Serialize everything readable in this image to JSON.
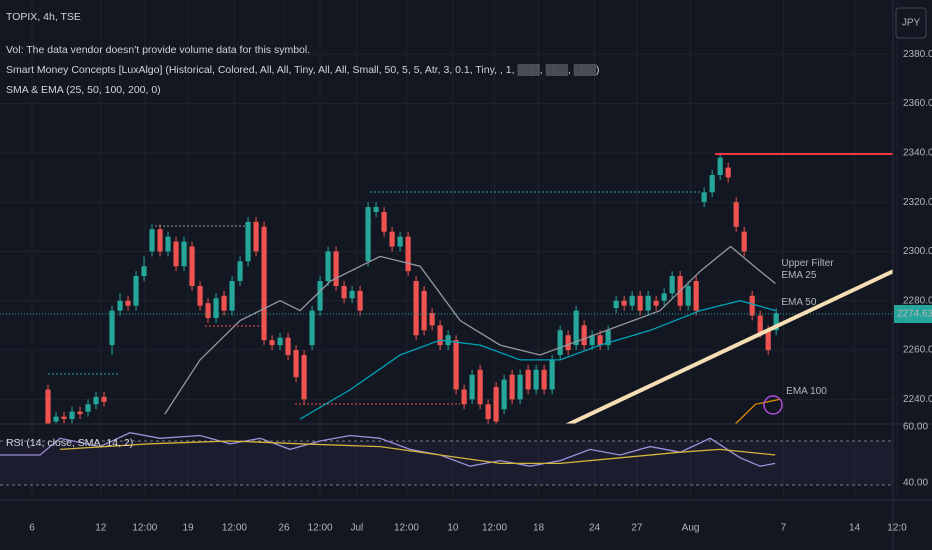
{
  "chart_data": {
    "type": "candlestick",
    "title": "TOPIX, 4h, TSE",
    "indicators": [
      "Vol: The data vendor doesn't provide volume data for this symbol.",
      "Smart Money Concepts [LuxAlgo] (Historical, Colored, All, All, Tiny, All, All, Small, 50, 5, 5, Atr, 3, 0.1, Tiny, , 1, ▒▒▒, ▒▒▒, ▒▒▒)",
      "SMA & EMA (25, 50, 100, 200, 0)"
    ],
    "currency": "JPY",
    "up_color": "#26a69a",
    "down_color": "#ef5350",
    "grid": true,
    "xlim": [
      -4,
      107.6
    ],
    "xticks": [
      {
        "value": 0,
        "label": "6"
      },
      {
        "value": 8.6,
        "label": "12"
      },
      {
        "value": 14.1,
        "label": "12:00"
      },
      {
        "value": 19.5,
        "label": "19"
      },
      {
        "value": 25.3,
        "label": "12:00"
      },
      {
        "value": 31.5,
        "label": "26"
      },
      {
        "value": 36,
        "label": "12:00"
      },
      {
        "value": 40.6,
        "label": "Jul"
      },
      {
        "value": 46.8,
        "label": "12:00"
      },
      {
        "value": 52.6,
        "label": "10"
      },
      {
        "value": 57.8,
        "label": "12:00"
      },
      {
        "value": 63.3,
        "label": "18"
      },
      {
        "value": 70.3,
        "label": "24"
      },
      {
        "value": 75.6,
        "label": "27"
      },
      {
        "value": 82.3,
        "label": "Aug"
      },
      {
        "value": 93.9,
        "label": "7"
      },
      {
        "value": 102.8,
        "label": "14"
      },
      {
        "value": 108.1,
        "label": "12:0"
      }
    ],
    "ylim": [
      2230,
      2402
    ],
    "yticks": [
      {
        "value": 2240,
        "label": "2240.00"
      },
      {
        "value": 2260,
        "label": "2260.00"
      },
      {
        "value": 2280,
        "label": "2280.00"
      },
      {
        "value": 2300,
        "label": "2300.00"
      },
      {
        "value": 2320,
        "label": "2320.00"
      },
      {
        "value": 2340,
        "label": "2340.00"
      },
      {
        "value": 2360,
        "label": "2360.00"
      },
      {
        "value": 2380,
        "label": "2380.00"
      }
    ],
    "last_price": 2274.63,
    "x": [
      2,
      3,
      4,
      5,
      6,
      7,
      8,
      9,
      10,
      11,
      12,
      13,
      14,
      15,
      16,
      17,
      18,
      19,
      20,
      21,
      22,
      23,
      24,
      25,
      26,
      27,
      28,
      29,
      30,
      31,
      32,
      33,
      34,
      35,
      36,
      37,
      38,
      39,
      40,
      41,
      42,
      43,
      44,
      45,
      46,
      47,
      48,
      49,
      50,
      51,
      52,
      53,
      54,
      55,
      56,
      57,
      58,
      59,
      60,
      61,
      62,
      63,
      64,
      65,
      66,
      67,
      68,
      69,
      70,
      71,
      72,
      73,
      74,
      75,
      76,
      77,
      78,
      79,
      80,
      81,
      82,
      83,
      84,
      85,
      86,
      87,
      88,
      89,
      90,
      91,
      92,
      93
    ],
    "open": [
      2244,
      2231,
      2233,
      2232,
      2235,
      2235,
      2238,
      2241,
      2262,
      2276,
      2280,
      2278,
      2290,
      2300,
      2309,
      2300,
      2304,
      2294,
      2302,
      2286,
      2279,
      2273,
      2282,
      2276,
      2288,
      2296,
      2312,
      2310,
      2264,
      2262,
      2265,
      2260,
      2258,
      2262,
      2276,
      2288,
      2300,
      2286,
      2281,
      2284,
      2296,
      2316,
      2316,
      2308,
      2302,
      2306,
      2288,
      2284,
      2275,
      2270,
      2262,
      2264,
      2244,
      2240,
      2252,
      2238,
      2245,
      2236,
      2250,
      2240,
      2252,
      2244,
      2252,
      2244,
      2258,
      2266,
      2262,
      2270,
      2262,
      2266,
      2262,
      2277,
      2280,
      2278,
      2282,
      2276,
      2280,
      2280,
      2283,
      2290,
      2278,
      2288,
      2320,
      2324,
      2331,
      2334,
      2320,
      2308,
      2282,
      2274,
      2268,
      2268
    ],
    "high": [
      2246,
      2235,
      2235,
      2237,
      2237,
      2240,
      2243,
      2243,
      2278,
      2283,
      2282,
      2292,
      2298,
      2311,
      2311,
      2308,
      2306,
      2306,
      2304,
      2288,
      2281,
      2283,
      2284,
      2290,
      2298,
      2314,
      2314,
      2312,
      2266,
      2267,
      2267,
      2262,
      2260,
      2278,
      2290,
      2302,
      2302,
      2288,
      2286,
      2286,
      2320,
      2320,
      2318,
      2310,
      2308,
      2308,
      2290,
      2286,
      2277,
      2272,
      2268,
      2266,
      2246,
      2252,
      2254,
      2240,
      2247,
      2250,
      2252,
      2252,
      2254,
      2254,
      2254,
      2258,
      2270,
      2268,
      2278,
      2272,
      2268,
      2268,
      2270,
      2282,
      2282,
      2284,
      2284,
      2284,
      2282,
      2285,
      2292,
      2292,
      2288,
      2290,
      2326,
      2333,
      2340,
      2336,
      2322,
      2310,
      2284,
      2276,
      2270,
      2277
    ],
    "low": [
      2228,
      2229,
      2230,
      2230,
      2232,
      2233,
      2236,
      2237,
      2258,
      2274,
      2276,
      2276,
      2288,
      2298,
      2298,
      2298,
      2292,
      2292,
      2284,
      2276,
      2271,
      2271,
      2274,
      2274,
      2286,
      2294,
      2298,
      2262,
      2260,
      2260,
      2256,
      2247,
      2238,
      2260,
      2274,
      2286,
      2284,
      2279,
      2279,
      2274,
      2294,
      2314,
      2306,
      2300,
      2300,
      2290,
      2264,
      2266,
      2268,
      2260,
      2260,
      2242,
      2236,
      2238,
      2236,
      2230,
      2229,
      2234,
      2238,
      2238,
      2242,
      2242,
      2242,
      2242,
      2256,
      2258,
      2260,
      2260,
      2260,
      2260,
      2260,
      2275,
      2276,
      2276,
      2274,
      2274,
      2276,
      2278,
      2281,
      2276,
      2276,
      2274,
      2318,
      2322,
      2329,
      2328,
      2308,
      2298,
      2272,
      2265,
      2258,
      2266
    ],
    "close": [
      2230,
      2233,
      2232,
      2235,
      2234,
      2238,
      2241,
      2239,
      2276,
      2280,
      2278,
      2290,
      2294,
      2309,
      2300,
      2306,
      2294,
      2304,
      2286,
      2278,
      2273,
      2281,
      2276,
      2288,
      2296,
      2312,
      2300,
      2264,
      2262,
      2265,
      2258,
      2249,
      2240,
      2276,
      2288,
      2300,
      2286,
      2281,
      2284,
      2276,
      2318,
      2318,
      2308,
      2302,
      2306,
      2292,
      2266,
      2268,
      2270,
      2262,
      2266,
      2244,
      2238,
      2250,
      2238,
      2232,
      2231,
      2248,
      2240,
      2250,
      2244,
      2252,
      2244,
      2256,
      2268,
      2260,
      2276,
      2262,
      2266,
      2262,
      2268,
      2280,
      2278,
      2282,
      2276,
      2282,
      2278,
      2283,
      2290,
      2278,
      2286,
      2276,
      2324,
      2331,
      2338,
      2330,
      2310,
      2300,
      2274,
      2267,
      2260,
      2275
    ],
    "lines": [
      {
        "name": "EMA 25",
        "color": "#9598a1",
        "x": [
          16.6,
          21,
          26,
          31,
          33.5,
          37.3,
          43.5,
          48.5,
          53.5,
          58.5,
          63.5,
          68.5,
          73.5,
          78.5,
          83.5,
          87.3,
          91,
          92.9
        ],
        "values": [
          2234,
          2256,
          2272,
          2280,
          2276,
          2288,
          2298,
          2294,
          2272,
          2262,
          2258,
          2264,
          2270,
          2276,
          2292,
          2302,
          2292,
          2287
        ]
      },
      {
        "name": "EMA 50",
        "color": "#00a2b8",
        "x": [
          33.5,
          39.8,
          46,
          51,
          56,
          61,
          66,
          71,
          77.3,
          83.5,
          88.5,
          92.9
        ],
        "values": [
          2232,
          2244,
          2258,
          2264,
          2262,
          2256,
          2256,
          2262,
          2268,
          2276,
          2280,
          2276
        ]
      },
      {
        "name": "EMA 100",
        "color": "#e08a00",
        "x": [
          87.9,
          90.4,
          93.5
        ],
        "values": [
          2230,
          2238,
          2240
        ]
      }
    ],
    "annotations": [
      "Upper Filter"
    ],
    "rsi": {
      "type": "line",
      "title": "RSI (14, close, SMA, 14, 2)",
      "ylim": [
        33.9,
        61.1
      ],
      "yticks": [
        {
          "value": 40,
          "label": "40.00"
        },
        {
          "value": 60,
          "label": "60.00"
        }
      ],
      "series": [
        {
          "color": "#9f8fd8",
          "x": [
            -4,
            1,
            3.5,
            8.5,
            12.25,
            16,
            21,
            24.75,
            28.5,
            32.25,
            36,
            39.75,
            43.5,
            47.25,
            51,
            54.75,
            58.5,
            62.25,
            66,
            69.75,
            73.5,
            77.25,
            81,
            84.75,
            88.5,
            91,
            92.875
          ],
          "values": [
            50,
            50,
            56,
            53,
            58,
            56,
            57,
            54,
            56,
            52,
            55,
            57,
            56,
            52,
            50,
            46,
            48,
            46,
            48,
            52,
            50,
            53,
            51,
            56,
            49,
            46,
            47
          ]
        },
        {
          "color": "#d4b43a",
          "x": [
            3.5,
            14.75,
            24.75,
            33.5,
            43.5,
            51,
            58.5,
            66,
            73.5,
            81,
            86,
            92.875
          ],
          "values": [
            52,
            54,
            55,
            54,
            53,
            50,
            47,
            47,
            49,
            51,
            52,
            50
          ]
        }
      ]
    }
  }
}
